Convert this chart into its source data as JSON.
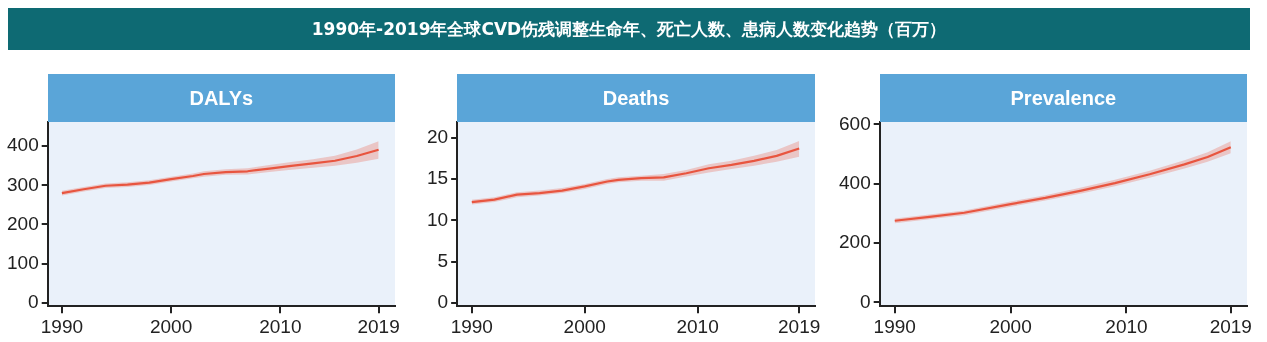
{
  "chart_data": [
    {
      "type": "other",
      "title": "1990年-2019年全球CVD伤残调整生命年、死亡人数、患病人数变化趋势（百万）"
    },
    {
      "type": "line",
      "title": "DALYs",
      "xlim": [
        1988.7,
        2020.5
      ],
      "xticks": [
        1990,
        2000,
        2010,
        2019
      ],
      "ylim": [
        -9,
        462
      ],
      "yticks": [
        0,
        100,
        200,
        300,
        400
      ],
      "series": [
        {
          "color": "#e8553f",
          "x": [
            1990,
            1992,
            1994,
            1996,
            1998,
            2000,
            2002,
            2003,
            2005,
            2007,
            2009,
            2011,
            2013,
            2015,
            2017,
            2019
          ],
          "values": [
            280,
            290,
            299,
            302,
            307,
            316,
            324,
            329,
            334,
            336,
            343,
            350,
            356,
            363,
            375,
            391
          ],
          "lower": [
            274,
            284,
            293,
            296,
            301,
            310,
            318,
            322,
            327,
            328,
            334,
            340,
            345,
            350,
            358,
            368
          ],
          "upper": [
            286,
            296,
            305,
            308,
            313,
            322,
            330,
            336,
            341,
            344,
            352,
            360,
            367,
            376,
            392,
            413
          ]
        }
      ]
    },
    {
      "type": "line",
      "title": "Deaths",
      "xlim": [
        1988.7,
        2020.4
      ],
      "xticks": [
        1990,
        2000,
        2010,
        2019
      ],
      "ylim": [
        -0.4,
        21.9
      ],
      "yticks": [
        0,
        5,
        10,
        15,
        20
      ],
      "series": [
        {
          "color": "#e8553f",
          "x": [
            1990,
            1992,
            1994,
            1996,
            1998,
            2000,
            2002,
            2003,
            2005,
            2007,
            2009,
            2011,
            2013,
            2015,
            2017,
            2019
          ],
          "values": [
            12.2,
            12.5,
            13.1,
            13.3,
            13.6,
            14.1,
            14.7,
            14.9,
            15.1,
            15.2,
            15.7,
            16.3,
            16.7,
            17.2,
            17.8,
            18.7
          ],
          "lower": [
            11.9,
            12.2,
            12.8,
            13.0,
            13.3,
            13.8,
            14.4,
            14.6,
            14.8,
            14.8,
            15.3,
            15.8,
            16.2,
            16.6,
            17.1,
            17.7
          ],
          "upper": [
            12.5,
            12.8,
            13.4,
            13.6,
            13.9,
            14.4,
            15.0,
            15.2,
            15.4,
            15.6,
            16.1,
            16.8,
            17.2,
            17.8,
            18.5,
            19.6
          ]
        }
      ]
    },
    {
      "type": "line",
      "title": "Prevalence",
      "xlim": [
        1988.7,
        2020.4
      ],
      "xticks": [
        1990,
        2000,
        2010,
        2019
      ],
      "ylim": [
        -13,
        608
      ],
      "yticks": [
        0,
        200,
        400,
        600
      ],
      "series": [
        {
          "color": "#e8553f",
          "x": [
            1990,
            1993,
            1996,
            2000,
            2003,
            2006,
            2009,
            2012,
            2015,
            2017,
            2019
          ],
          "values": [
            275,
            288,
            302,
            331,
            352,
            376,
            402,
            432,
            465,
            490,
            523
          ],
          "lower": [
            267,
            280,
            294,
            322,
            343,
            366,
            391,
            420,
            451,
            474,
            503
          ],
          "upper": [
            283,
            296,
            310,
            340,
            361,
            386,
            413,
            444,
            479,
            506,
            543
          ]
        }
      ]
    }
  ]
}
